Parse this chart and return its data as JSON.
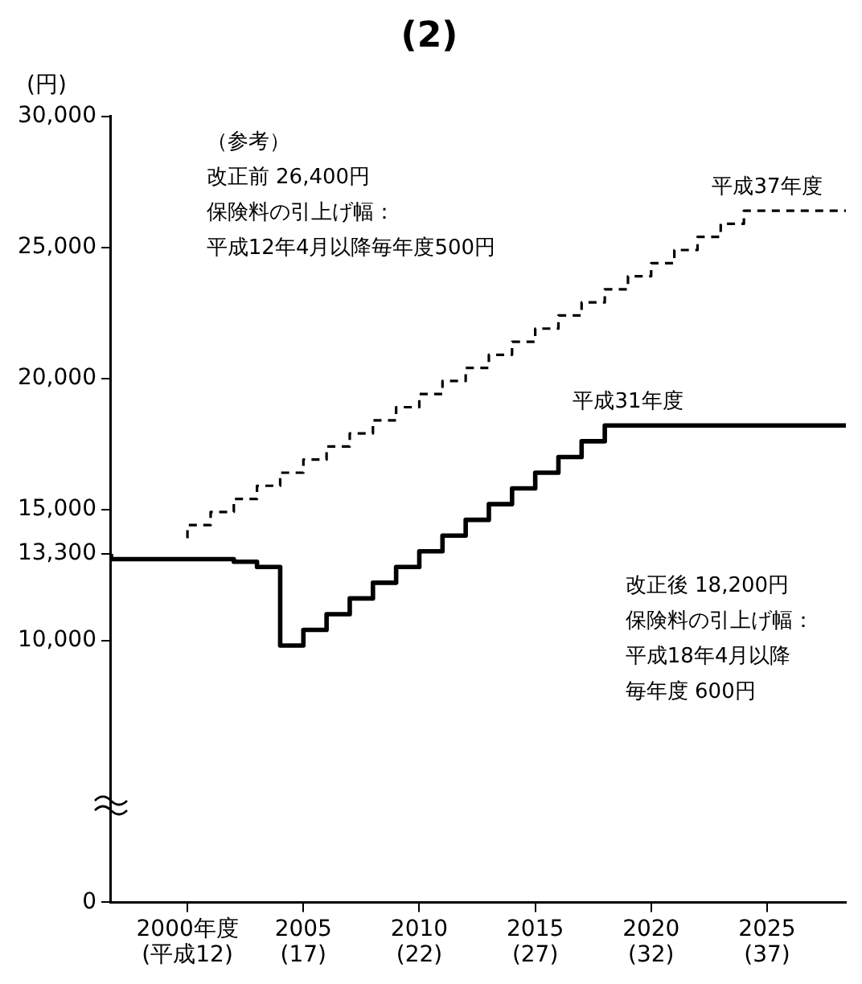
{
  "chart_data": {
    "type": "step",
    "title": "(2)",
    "ylabel": "(円)",
    "xlim": [
      1996.7,
      2028.4
    ],
    "xticks": [
      {
        "value": 2000,
        "label": "2000年度"
      },
      2005,
      2010,
      2015,
      2020,
      2025
    ],
    "ylim": [
      0,
      30000
    ],
    "yticks": [
      0,
      {
        "value": 10000,
        "label": "10,000"
      },
      {
        "value": 13300,
        "label": "13,300"
      },
      {
        "value": 15000,
        "label": "15,000"
      },
      {
        "value": 20000,
        "label": "20,000"
      },
      {
        "value": 25000,
        "label": "25,000"
      },
      {
        "value": 30000,
        "label": "30,000"
      }
    ],
    "series": [
      {
        "color": "#000000",
        "line_style": "dashed",
        "x": [
          2000,
          2001,
          2002,
          2003,
          2004,
          2005,
          2006,
          2007,
          2008,
          2009,
          2010,
          2011,
          2012,
          2013,
          2014,
          2015,
          2016,
          2017,
          2018,
          2019,
          2020,
          2021,
          2022,
          2023,
          2024,
          2025,
          2028.4
        ],
        "values": [
          13900,
          14400,
          14900,
          15400,
          15900,
          16400,
          16900,
          17400,
          17900,
          18400,
          18900,
          19400,
          19900,
          20400,
          20900,
          21400,
          21900,
          22400,
          22900,
          23400,
          23900,
          24400,
          24900,
          25400,
          25900,
          26400,
          26400
        ]
      },
      {
        "color": "#000000",
        "line_style": "solid",
        "x": [
          1996.7,
          2002,
          2003,
          2004,
          2005,
          2006,
          2007,
          2008,
          2009,
          2010,
          2011,
          2012,
          2013,
          2014,
          2015,
          2016,
          2017,
          2018,
          2019,
          2028.4
        ],
        "values": [
          13300,
          13100,
          13000,
          12800,
          9800,
          10400,
          11000,
          11600,
          12200,
          12800,
          13400,
          14000,
          14600,
          15200,
          15800,
          16400,
          17000,
          17600,
          18200,
          18200
        ]
      }
    ],
    "annotations": [
      "（参考）",
      "改正前 26,400円",
      "保険料の引上げ幅：",
      "平成12年4月以降毎年度500円",
      {
        "text": "平成37年度",
        "x": 2025,
        "y": 26400
      },
      {
        "text": "平成31年度",
        "x": 2019,
        "y": 18200
      },
      "改正後 18,200円",
      "保険料の引上げ幅：",
      "平成18年4月以降",
      "毎年度 600円",
      "(平成12)",
      "(17)",
      "(22)",
      "(27)",
      "(32)",
      "(37)"
    ],
    "grid": false,
    "legend": false,
    "marker": "none"
  }
}
